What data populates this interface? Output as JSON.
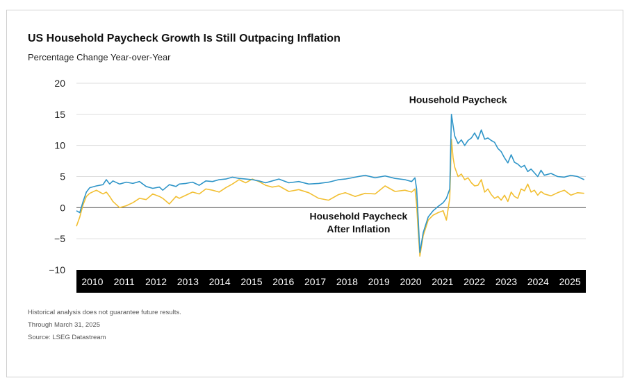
{
  "title": "US Household Paycheck Growth Is Still Outpacing Inflation",
  "subtitle": "Percentage Change Year-over-Year",
  "footnotes": [
    "Historical analysis does not guarantee future results.",
    "Through March 31, 2025",
    "Source: LSEG Datastream"
  ],
  "colors": {
    "paycheck": "#2f95c8",
    "after_inflation": "#f2bf32",
    "axis_band": "#000000",
    "grid": "#dddddd"
  },
  "chart_data": {
    "type": "line",
    "title": "US Household Paycheck Growth Is Still Outpacing Inflation",
    "ylabel": "Percentage Change Year-over-Year",
    "ylim": [
      -10,
      20
    ],
    "xlim": [
      2009.9,
      2025.25
    ],
    "yticks": [
      20,
      15,
      10,
      5,
      0,
      -5,
      -10
    ],
    "ytick_labels": [
      "20",
      "15",
      "10",
      "5",
      "0",
      "−5",
      "−10"
    ],
    "xtick_labels": [
      "2010",
      "2011",
      "2012",
      "2013",
      "2014",
      "2015",
      "2016",
      "2017",
      "2018",
      "2019",
      "2020",
      "2021",
      "2022",
      "2023",
      "2024",
      "2025"
    ],
    "grid": true,
    "annotations": [
      {
        "text": "Household Paycheck",
        "x": 2021.4,
        "y": 16.8
      },
      {
        "text": "Household Paycheck",
        "x": 2018.4,
        "y": -1.9
      },
      {
        "text": "After Inflation",
        "x": 2018.4,
        "y": -4.0
      }
    ],
    "series": [
      {
        "name": "Household Paycheck",
        "color": "#2f95c8",
        "x": [
          2009.9,
          2010.0,
          2010.1,
          2010.2,
          2010.3,
          2010.5,
          2010.7,
          2010.8,
          2010.9,
          2011.0,
          2011.2,
          2011.4,
          2011.6,
          2011.8,
          2012.0,
          2012.2,
          2012.4,
          2012.5,
          2012.7,
          2012.9,
          2013.0,
          2013.2,
          2013.4,
          2013.6,
          2013.8,
          2014.0,
          2014.2,
          2014.4,
          2014.6,
          2014.8,
          2015.0,
          2015.2,
          2015.4,
          2015.6,
          2015.8,
          2016.0,
          2016.3,
          2016.6,
          2016.9,
          2017.2,
          2017.5,
          2017.8,
          2018.0,
          2018.3,
          2018.6,
          2018.9,
          2019.2,
          2019.5,
          2019.8,
          2020.0,
          2020.1,
          2020.15,
          2020.2,
          2020.25,
          2020.35,
          2020.5,
          2020.65,
          2020.8,
          2020.95,
          2021.05,
          2021.15,
          2021.2,
          2021.25,
          2021.3,
          2021.4,
          2021.5,
          2021.6,
          2021.7,
          2021.8,
          2021.9,
          2022.0,
          2022.1,
          2022.2,
          2022.3,
          2022.4,
          2022.5,
          2022.6,
          2022.7,
          2022.8,
          2022.9,
          2023.0,
          2023.1,
          2023.2,
          2023.3,
          2023.4,
          2023.5,
          2023.6,
          2023.7,
          2023.8,
          2023.9,
          2024.0,
          2024.2,
          2024.4,
          2024.6,
          2024.8,
          2025.0,
          2025.2
        ],
        "y": [
          -0.5,
          -0.8,
          1.0,
          2.5,
          3.2,
          3.5,
          3.7,
          4.5,
          3.8,
          4.3,
          3.8,
          4.1,
          3.9,
          4.2,
          3.4,
          3.1,
          3.3,
          2.8,
          3.7,
          3.4,
          3.8,
          3.9,
          4.1,
          3.6,
          4.3,
          4.2,
          4.5,
          4.6,
          4.9,
          4.7,
          4.6,
          4.5,
          4.3,
          4.0,
          4.3,
          4.6,
          4.0,
          4.2,
          3.8,
          3.9,
          4.1,
          4.5,
          4.6,
          4.9,
          5.2,
          4.8,
          5.1,
          4.7,
          4.5,
          4.2,
          4.8,
          3.0,
          -2.0,
          -7.2,
          -4.0,
          -1.5,
          -0.5,
          0.2,
          0.8,
          1.5,
          3.0,
          15.0,
          13.2,
          11.5,
          10.3,
          10.9,
          10.0,
          10.8,
          11.2,
          12.0,
          11.0,
          12.5,
          11.0,
          11.2,
          10.8,
          10.5,
          9.5,
          9.0,
          8.0,
          7.2,
          8.5,
          7.3,
          7.0,
          6.5,
          6.8,
          5.8,
          6.2,
          5.6,
          5.0,
          6.0,
          5.2,
          5.5,
          5.0,
          4.9,
          5.2,
          5.0,
          4.5
        ]
      },
      {
        "name": "Household Paycheck After Inflation",
        "color": "#f2bf32",
        "x": [
          2009.9,
          2010.0,
          2010.1,
          2010.2,
          2010.3,
          2010.5,
          2010.7,
          2010.8,
          2010.9,
          2011.0,
          2011.2,
          2011.4,
          2011.6,
          2011.8,
          2012.0,
          2012.2,
          2012.4,
          2012.5,
          2012.7,
          2012.9,
          2013.0,
          2013.2,
          2013.4,
          2013.6,
          2013.8,
          2014.0,
          2014.2,
          2014.4,
          2014.6,
          2014.8,
          2015.0,
          2015.2,
          2015.4,
          2015.6,
          2015.8,
          2016.0,
          2016.3,
          2016.6,
          2016.9,
          2017.2,
          2017.5,
          2017.8,
          2018.0,
          2018.3,
          2018.6,
          2018.9,
          2019.2,
          2019.5,
          2019.8,
          2020.0,
          2020.1,
          2020.15,
          2020.2,
          2020.25,
          2020.35,
          2020.5,
          2020.65,
          2020.8,
          2020.95,
          2021.05,
          2021.15,
          2021.2,
          2021.25,
          2021.3,
          2021.4,
          2021.5,
          2021.6,
          2021.7,
          2021.8,
          2021.9,
          2022.0,
          2022.1,
          2022.2,
          2022.3,
          2022.4,
          2022.5,
          2022.6,
          2022.7,
          2022.8,
          2022.9,
          2023.0,
          2023.1,
          2023.2,
          2023.3,
          2023.4,
          2023.5,
          2023.6,
          2023.7,
          2023.8,
          2023.9,
          2024.0,
          2024.2,
          2024.4,
          2024.6,
          2024.8,
          2025.0,
          2025.2
        ],
        "y": [
          -3.0,
          -1.5,
          0.5,
          1.8,
          2.3,
          2.8,
          2.2,
          2.5,
          1.8,
          1.0,
          0.0,
          0.3,
          0.8,
          1.5,
          1.3,
          2.2,
          1.8,
          1.5,
          0.6,
          1.8,
          1.5,
          2.0,
          2.5,
          2.2,
          3.0,
          2.8,
          2.5,
          3.2,
          3.8,
          4.5,
          4.0,
          4.6,
          4.2,
          3.6,
          3.3,
          3.5,
          2.6,
          2.9,
          2.4,
          1.5,
          1.2,
          2.1,
          2.4,
          1.8,
          2.3,
          2.2,
          3.5,
          2.6,
          2.8,
          2.5,
          3.0,
          0.5,
          -4.0,
          -7.8,
          -4.5,
          -2.0,
          -1.2,
          -0.8,
          -0.5,
          -2.0,
          1.5,
          11.0,
          8.0,
          6.5,
          5.0,
          5.4,
          4.5,
          4.8,
          4.0,
          3.5,
          3.6,
          4.5,
          2.5,
          3.0,
          2.1,
          1.5,
          1.8,
          1.2,
          2.0,
          1.0,
          2.5,
          1.8,
          1.5,
          3.0,
          2.7,
          3.8,
          2.5,
          2.8,
          2.0,
          2.6,
          2.2,
          1.9,
          2.4,
          2.8,
          2.0,
          2.4,
          2.3
        ]
      }
    ]
  }
}
